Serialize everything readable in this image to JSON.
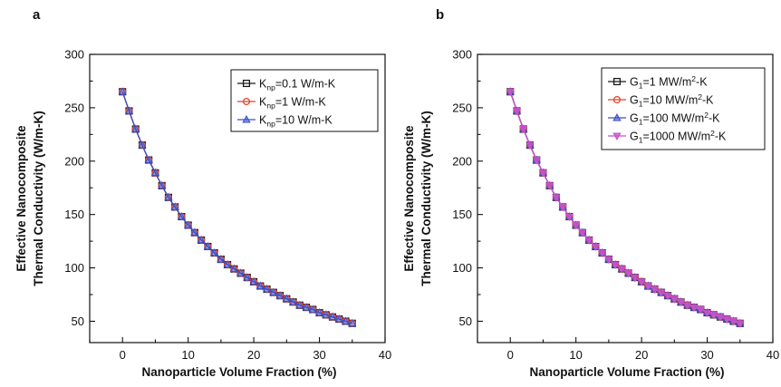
{
  "chart_data": [
    {
      "panel_label": "a",
      "type": "line",
      "xlabel": "Nanoparticle Volume Fraction (%)",
      "ylabel_line1": "Effective Nanocomposite",
      "ylabel_line2": "Thermal Conductivity (W/m-K)",
      "xlim": [
        -5,
        40
      ],
      "ylim": [
        30,
        300
      ],
      "xticks": [
        0,
        10,
        20,
        30,
        40
      ],
      "yticks": [
        50,
        100,
        150,
        200,
        250,
        300
      ],
      "grid": false,
      "legend_position": "top-right",
      "x": [
        0,
        1,
        2,
        3,
        4,
        5,
        6,
        7,
        8,
        9,
        10,
        11,
        12,
        13,
        14,
        15,
        16,
        17,
        18,
        19,
        20,
        21,
        22,
        23,
        24,
        25,
        26,
        27,
        28,
        29,
        30,
        31,
        32,
        33,
        34,
        35
      ],
      "series": [
        {
          "label_main": "K",
          "label_sub": "np",
          "label_rest": "=0.1 W/m-K",
          "marker": "square",
          "color": "#1a1a1a",
          "values": [
            265,
            247,
            230,
            215,
            201,
            189,
            177,
            166,
            157,
            148,
            140,
            133,
            126,
            120,
            114,
            108,
            103,
            99,
            95,
            91,
            87,
            83,
            80,
            77,
            74,
            71,
            68,
            65,
            63,
            61,
            58,
            56,
            54,
            52,
            50,
            48
          ]
        },
        {
          "label_main": "K",
          "label_sub": "np",
          "label_rest": "=1  W/m-K",
          "marker": "circle",
          "color": "#e8412a",
          "values": [
            265,
            247,
            230,
            215,
            201,
            189,
            177,
            166,
            157,
            148,
            140,
            133,
            126,
            120,
            114,
            108,
            103,
            99,
            95,
            91,
            87,
            83,
            80,
            77,
            74,
            71,
            68,
            65,
            63,
            61,
            58,
            56,
            54,
            52,
            50,
            48
          ]
        },
        {
          "label_main": "K",
          "label_sub": "np",
          "label_rest": "=10 W/m-K",
          "marker": "triangle",
          "color": "#3d4fc4",
          "values": [
            265,
            247,
            230,
            215,
            201,
            189,
            177,
            166,
            157,
            148,
            140,
            133,
            126,
            120,
            114,
            108,
            103,
            99,
            95,
            91,
            87,
            83,
            80,
            77,
            74,
            71,
            68,
            65,
            63,
            61,
            58,
            56,
            54,
            52,
            50,
            48
          ]
        }
      ]
    },
    {
      "panel_label": "b",
      "type": "line",
      "xlabel": "Nanoparticle Volume Fraction (%)",
      "ylabel_line1": "Effective Nanocomposite",
      "ylabel_line2": "Thermal Conductivity (W/m-K)",
      "xlim": [
        -5,
        40
      ],
      "ylim": [
        30,
        300
      ],
      "xticks": [
        0,
        10,
        20,
        30,
        40
      ],
      "yticks": [
        50,
        100,
        150,
        200,
        250,
        300
      ],
      "grid": false,
      "legend_position": "top-right",
      "x": [
        0,
        1,
        2,
        3,
        4,
        5,
        6,
        7,
        8,
        9,
        10,
        11,
        12,
        13,
        14,
        15,
        16,
        17,
        18,
        19,
        20,
        21,
        22,
        23,
        24,
        25,
        26,
        27,
        28,
        29,
        30,
        31,
        32,
        33,
        34,
        35
      ],
      "series": [
        {
          "label_main": "G",
          "label_sub": "1",
          "label_rest": "=1 MW/m",
          "label_sup": "2",
          "label_tail": "-K",
          "marker": "square",
          "color": "#1a1a1a",
          "values": [
            265,
            247,
            230,
            215,
            201,
            189,
            177,
            166,
            157,
            148,
            140,
            133,
            126,
            120,
            114,
            108,
            103,
            99,
            95,
            91,
            87,
            83,
            80,
            77,
            74,
            71,
            68,
            65,
            63,
            61,
            58,
            56,
            54,
            52,
            50,
            48
          ]
        },
        {
          "label_main": "G",
          "label_sub": "1",
          "label_rest": "=10 MW/m",
          "label_sup": "2",
          "label_tail": "-K",
          "marker": "circle",
          "color": "#e8412a",
          "values": [
            265,
            247,
            230,
            215,
            201,
            189,
            177,
            166,
            157,
            148,
            140,
            133,
            126,
            120,
            114,
            108,
            103,
            99,
            95,
            91,
            87,
            83,
            80,
            77,
            74,
            71,
            68,
            65,
            63,
            61,
            58,
            56,
            54,
            52,
            50,
            48
          ]
        },
        {
          "label_main": "G",
          "label_sub": "1",
          "label_rest": "=100 MW/m",
          "label_sup": "2",
          "label_tail": "-K",
          "marker": "triangle",
          "color": "#3d4fc4",
          "values": [
            265,
            247,
            230,
            215,
            201,
            189,
            177,
            166,
            157,
            148,
            140,
            133,
            126,
            120,
            114,
            108,
            103,
            99,
            95,
            91,
            87,
            83,
            80,
            77,
            74,
            71,
            68,
            65,
            63,
            61,
            58,
            56,
            54,
            52,
            50,
            48
          ]
        },
        {
          "label_main": "G",
          "label_sub": "1",
          "label_rest": "=1000 MW/m",
          "label_sup": "2",
          "label_tail": "-K",
          "marker": "triangle-down",
          "color": "#c94fc9",
          "values": [
            265,
            247,
            230,
            215,
            201,
            189,
            177,
            166,
            157,
            148,
            140,
            133,
            126,
            120,
            114,
            108,
            103,
            99,
            95,
            91,
            87,
            83,
            80,
            77,
            74,
            71,
            68,
            65,
            63,
            61,
            58,
            56,
            54,
            52,
            50,
            48
          ]
        }
      ]
    }
  ]
}
